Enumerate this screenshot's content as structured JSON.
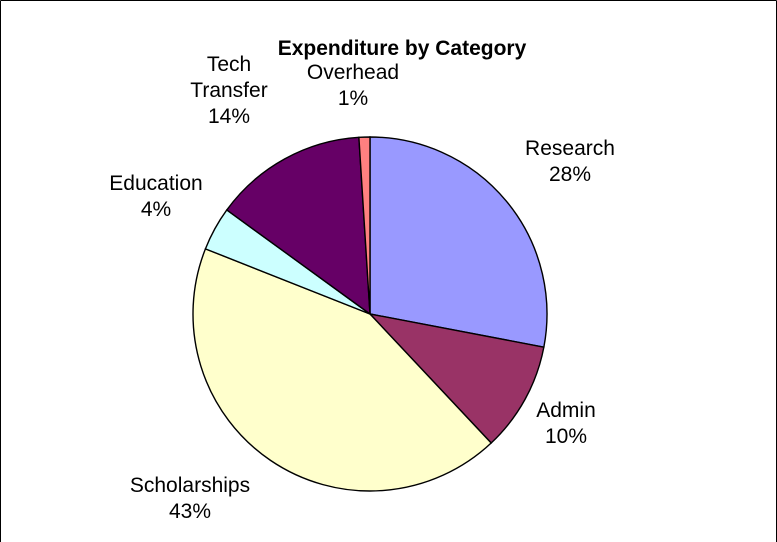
{
  "chart_data": {
    "type": "pie",
    "title": "Expenditure by Category",
    "slices": [
      {
        "label_lines": [
          "Research"
        ],
        "value": 28,
        "value_label": "28%",
        "color": "#9999FF"
      },
      {
        "label_lines": [
          "Admin"
        ],
        "value": 10,
        "value_label": "10%",
        "color": "#993366"
      },
      {
        "label_lines": [
          "Scholarships"
        ],
        "value": 43,
        "value_label": "43%",
        "color": "#FFFFCC"
      },
      {
        "label_lines": [
          "Education"
        ],
        "value": 4,
        "value_label": "4%",
        "color": "#CCFFFF"
      },
      {
        "label_lines": [
          "Tech",
          "Transfer"
        ],
        "value": 14,
        "value_label": "14%",
        "color": "#660066"
      },
      {
        "label_lines": [
          "Overhead"
        ],
        "value": 1,
        "value_label": "1%",
        "color": "#FF8080"
      }
    ],
    "start": "12 o'clock",
    "direction": "clockwise",
    "legend": "none",
    "border_color": "#000000"
  }
}
